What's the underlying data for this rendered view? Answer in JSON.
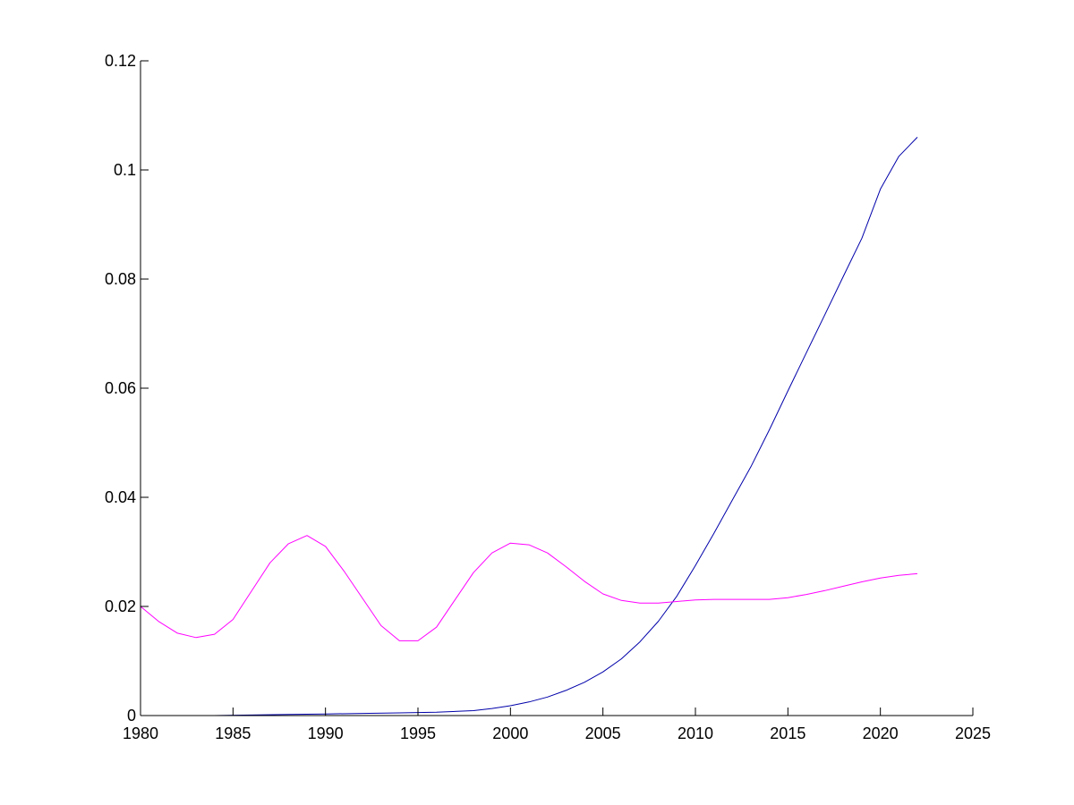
{
  "chart_data": {
    "type": "line",
    "title": "",
    "xlabel": "",
    "ylabel": "",
    "xlim": [
      1980,
      2025
    ],
    "ylim": [
      0,
      0.12
    ],
    "grid": false,
    "legend": "none",
    "x_ticks": [
      1980,
      1985,
      1990,
      1995,
      2000,
      2005,
      2010,
      2015,
      2020,
      2025
    ],
    "x_tick_labels": [
      "1980",
      "1985",
      "1990",
      "1995",
      "2000",
      "2005",
      "2010",
      "2015",
      "2020",
      "2025"
    ],
    "y_ticks": [
      0,
      0.02,
      0.04,
      0.06,
      0.08,
      0.1,
      0.12
    ],
    "y_tick_labels": [
      "0",
      "0.02",
      "0.04",
      "0.06",
      "0.08",
      "0.1",
      "0.12"
    ],
    "series": [
      {
        "color": "#0000aa",
        "x": [
          1980,
          1982,
          1984,
          1986,
          1988,
          1990,
          1992,
          1994,
          1996,
          1998,
          1999,
          2000,
          2001,
          2002,
          2003,
          2004,
          2005,
          2006,
          2007,
          2008,
          2009,
          2010,
          2011,
          2012,
          2013,
          2014,
          2015,
          2016,
          2017,
          2018,
          2019,
          2020,
          2021,
          2022
        ],
        "y": [
          0.0,
          0.0,
          0.0,
          0.0001,
          0.0002,
          0.0003,
          0.0004,
          0.0005,
          0.0006,
          0.0009,
          0.0013,
          0.0018,
          0.0025,
          0.0034,
          0.0046,
          0.0061,
          0.008,
          0.0104,
          0.0135,
          0.0173,
          0.0219,
          0.0275,
          0.0334,
          0.0395,
          0.0456,
          0.0524,
          0.0595,
          0.0665,
          0.0735,
          0.0805,
          0.0875,
          0.0965,
          0.1025,
          0.106
        ]
      },
      {
        "color": "#ff00ff",
        "x": [
          1980,
          1981,
          1982,
          1983,
          1984,
          1985,
          1986,
          1987,
          1988,
          1989,
          1990,
          1991,
          1992,
          1993,
          1994,
          1995,
          1996,
          1997,
          1998,
          1999,
          2000,
          2001,
          2002,
          2003,
          2004,
          2005,
          2006,
          2007,
          2008,
          2009,
          2010,
          2011,
          2012,
          2013,
          2014,
          2015,
          2016,
          2017,
          2018,
          2019,
          2020,
          2021,
          2022
        ],
        "y": [
          0.02,
          0.0172,
          0.0151,
          0.0143,
          0.0149,
          0.0176,
          0.0228,
          0.028,
          0.0315,
          0.033,
          0.031,
          0.0265,
          0.0215,
          0.0165,
          0.0137,
          0.0137,
          0.0162,
          0.0212,
          0.0262,
          0.0298,
          0.0316,
          0.0313,
          0.0298,
          0.0273,
          0.0246,
          0.0223,
          0.0211,
          0.0206,
          0.0206,
          0.0209,
          0.0212,
          0.0213,
          0.0213,
          0.0213,
          0.0213,
          0.0216,
          0.0222,
          0.0229,
          0.0237,
          0.0245,
          0.0252,
          0.0257,
          0.026
        ]
      }
    ]
  }
}
